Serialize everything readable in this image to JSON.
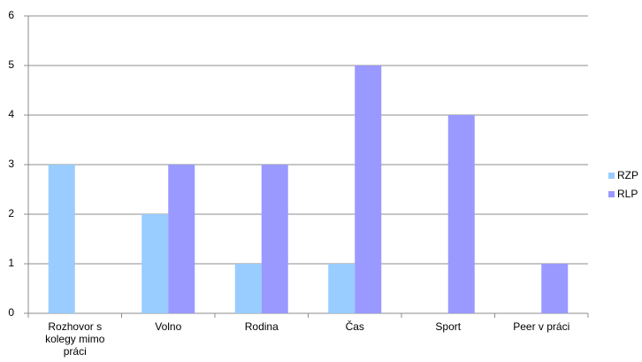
{
  "chart_data": {
    "type": "bar",
    "categories": [
      "Rozhovor s kolegy mimo práci",
      "Volno",
      "Rodina",
      "Čas",
      "Sport",
      "Peer v práci"
    ],
    "series": [
      {
        "name": "RZP",
        "color": "#99ccff",
        "values": [
          3,
          2,
          1,
          1,
          0,
          0
        ]
      },
      {
        "name": "RLP",
        "color": "#9999ff",
        "values": [
          0,
          3,
          3,
          5,
          4,
          1
        ]
      }
    ],
    "ylim": [
      0,
      6
    ],
    "yticks": [
      0,
      1,
      2,
      3,
      4,
      5,
      6
    ],
    "grid": true,
    "legend": "right"
  }
}
